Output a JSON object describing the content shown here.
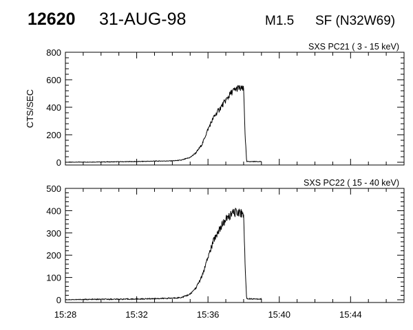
{
  "header": {
    "event_id": "12620",
    "date": "31-AUG-98",
    "flare_class": "M1.5",
    "flare_location": "SF (N32W69)"
  },
  "chart_data": [
    {
      "type": "line",
      "title": "SXS PC21  (  3 - 15 keV)",
      "ylabel": "CTS/SEC",
      "xlabel": "",
      "xlim": [
        "15:28",
        "15:47"
      ],
      "ylim": [
        0,
        800
      ],
      "yticks": [
        0,
        200,
        400,
        600,
        800
      ],
      "series": [
        {
          "x": [
            "15:28",
            "15:30",
            "15:32",
            "15:33",
            "15:34",
            "15:34:30",
            "15:35",
            "15:35:20",
            "15:35:40",
            "15:36",
            "15:36:20",
            "15:36:40",
            "15:37",
            "15:37:20",
            "15:37:40",
            "15:38",
            "15:38:05",
            "15:38:10",
            "15:39"
          ],
          "values": [
            0,
            2,
            5,
            8,
            10,
            15,
            35,
            70,
            130,
            240,
            330,
            390,
            450,
            510,
            540,
            530,
            200,
            5,
            5
          ]
        }
      ]
    },
    {
      "type": "line",
      "title": "SXS PC22  ( 15 - 40 keV)",
      "ylabel": "",
      "xlabel": "",
      "xlim": [
        "15:28",
        "15:47"
      ],
      "ylim": [
        0,
        500
      ],
      "yticks": [
        0,
        100,
        200,
        300,
        400,
        500
      ],
      "xticks": [
        "15:28",
        "15:32",
        "15:36",
        "15:40",
        "15:44"
      ],
      "series": [
        {
          "x": [
            "15:28",
            "15:30",
            "15:32",
            "15:33",
            "15:34",
            "15:34:30",
            "15:35",
            "15:35:20",
            "15:35:40",
            "15:36",
            "15:36:20",
            "15:36:40",
            "15:37",
            "15:37:20",
            "15:37:40",
            "15:38",
            "15:38:05",
            "15:38:10",
            "15:39"
          ],
          "values": [
            0,
            2,
            3,
            5,
            7,
            10,
            25,
            55,
            105,
            190,
            270,
            320,
            360,
            385,
            395,
            385,
            150,
            5,
            3
          ]
        }
      ]
    }
  ]
}
